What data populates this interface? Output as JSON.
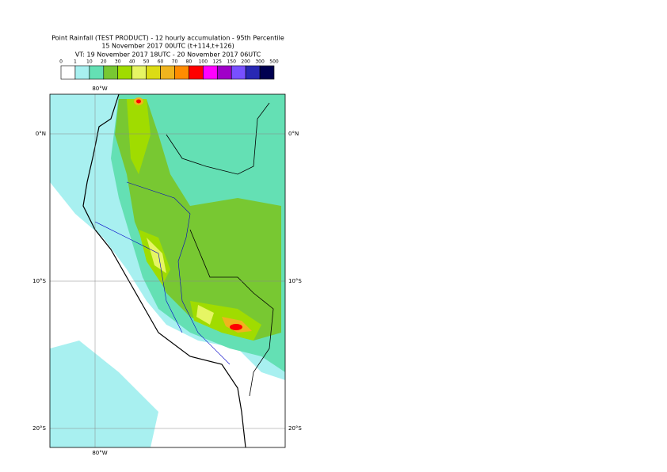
{
  "header": {
    "title_lines": [
      "Point Rainfall (TEST PRODUCT) - 12 hourly accumulation - 95th Percentile",
      "15 November 2017 00UTC (t+114,t+126)",
      "VT: 19 November 2017 18UTC - 20 November 2017 06UTC"
    ]
  },
  "legend": {
    "labels": [
      "0",
      "1",
      "10",
      "20",
      "30",
      "40",
      "50",
      "60",
      "70",
      "80",
      "100",
      "125",
      "150",
      "200",
      "300",
      "500"
    ],
    "colors": [
      "#ffffff",
      "#a8f0f0",
      "#64e0b4",
      "#78c832",
      "#a0dc00",
      "#e6f564",
      "#dcdc14",
      "#f0b41e",
      "#ff8c00",
      "#ff0000",
      "#ff00ff",
      "#a000c8",
      "#7850ff",
      "#2828b4",
      "#000050"
    ]
  },
  "map": {
    "lon_labels": [
      "80°W"
    ],
    "lat_labels": [
      "0°N",
      "10°S",
      "20°S"
    ]
  }
}
